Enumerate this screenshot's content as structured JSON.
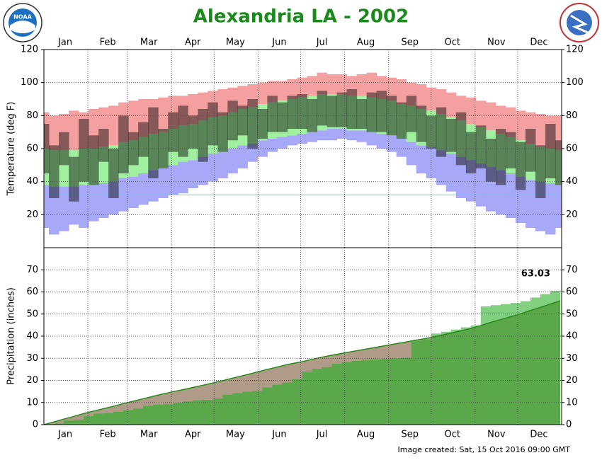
{
  "title": "Alexandria LA - 2002",
  "footer": "Image created: Sat, 15 Oct 2016 09:00 GMT",
  "chart_data": [
    {
      "type": "temperature_range",
      "y_label": "Temperature (deg F)",
      "xlim": [
        1,
        366
      ],
      "ylim": [
        0,
        120
      ],
      "yticks": [
        20,
        40,
        60,
        80,
        100,
        120
      ],
      "xticks": [
        {
          "value": 16,
          "label": "Jan"
        },
        {
          "value": 46,
          "label": "Feb"
        },
        {
          "value": 75,
          "label": "Mar"
        },
        {
          "value": 106,
          "label": "Apr"
        },
        {
          "value": 136,
          "label": "May"
        },
        {
          "value": 167,
          "label": "Jun"
        },
        {
          "value": 197,
          "label": "Jul"
        },
        {
          "value": 228,
          "label": "Aug"
        },
        {
          "value": 259,
          "label": "Sep"
        },
        {
          "value": 289,
          "label": "Oct"
        },
        {
          "value": 320,
          "label": "Nov"
        },
        {
          "value": 350,
          "label": "Dec"
        }
      ],
      "vgrid": [
        32,
        60,
        91,
        121,
        152,
        182,
        213,
        244,
        274,
        305,
        335
      ],
      "grid": true,
      "freezing_line": 32,
      "colors": {
        "record_high": "#f4a0a0",
        "normal": "#a0f0a0",
        "record_low": "#a8a8f8",
        "observed": "#000000",
        "freezing": "#40e0e0"
      },
      "x": [
        1,
        8,
        15,
        22,
        29,
        36,
        43,
        50,
        57,
        64,
        71,
        78,
        85,
        92,
        99,
        106,
        113,
        120,
        127,
        134,
        141,
        148,
        155,
        162,
        169,
        176,
        183,
        190,
        197,
        204,
        211,
        218,
        225,
        232,
        239,
        246,
        253,
        260,
        267,
        274,
        281,
        288,
        295,
        302,
        309,
        316,
        323,
        330,
        337,
        344,
        351,
        358,
        365
      ],
      "record_high": [
        82,
        80,
        81,
        83,
        82,
        84,
        85,
        86,
        88,
        89,
        90,
        90,
        91,
        92,
        92,
        93,
        94,
        95,
        96,
        97,
        98,
        99,
        100,
        101,
        101,
        102,
        103,
        104,
        106,
        105,
        105,
        104,
        105,
        106,
        104,
        103,
        102,
        100,
        99,
        97,
        96,
        94,
        92,
        91,
        89,
        88,
        86,
        85,
        83,
        82,
        81,
        80,
        80
      ],
      "normal_high": [
        60,
        59,
        59,
        59,
        60,
        60,
        61,
        62,
        64,
        65,
        67,
        69,
        70,
        72,
        74,
        75,
        77,
        79,
        80,
        82,
        84,
        85,
        87,
        88,
        89,
        90,
        91,
        92,
        93,
        93,
        93,
        92,
        92,
        91,
        90,
        89,
        87,
        86,
        84,
        83,
        81,
        79,
        77,
        75,
        73,
        71,
        69,
        67,
        65,
        63,
        61,
        60,
        59
      ],
      "normal_low": [
        38,
        37,
        37,
        37,
        38,
        38,
        39,
        40,
        42,
        43,
        45,
        47,
        48,
        50,
        52,
        53,
        55,
        57,
        58,
        60,
        62,
        63,
        65,
        66,
        67,
        68,
        69,
        70,
        71,
        72,
        72,
        71,
        71,
        70,
        69,
        68,
        66,
        64,
        62,
        61,
        59,
        57,
        55,
        53,
        51,
        49,
        47,
        45,
        43,
        41,
        40,
        39,
        38
      ],
      "record_low": [
        12,
        8,
        10,
        14,
        12,
        16,
        18,
        20,
        22,
        24,
        26,
        28,
        30,
        32,
        33,
        36,
        38,
        40,
        42,
        45,
        48,
        52,
        55,
        58,
        60,
        62,
        63,
        64,
        65,
        65,
        66,
        65,
        64,
        62,
        60,
        58,
        55,
        50,
        45,
        42,
        38,
        34,
        30,
        28,
        25,
        22,
        20,
        18,
        15,
        12,
        10,
        8,
        12
      ],
      "observed_high": [
        75,
        62,
        70,
        55,
        78,
        68,
        72,
        60,
        80,
        70,
        76,
        85,
        72,
        82,
        86,
        80,
        84,
        88,
        82,
        89,
        86,
        90,
        84,
        92,
        88,
        92,
        93,
        90,
        95,
        92,
        94,
        96,
        90,
        94,
        95,
        92,
        88,
        92,
        86,
        80,
        85,
        78,
        82,
        70,
        74,
        66,
        72,
        70,
        64,
        72,
        62,
        75,
        65
      ],
      "observed_low": [
        45,
        30,
        50,
        28,
        40,
        38,
        52,
        30,
        45,
        50,
        55,
        42,
        48,
        58,
        55,
        60,
        52,
        62,
        58,
        65,
        68,
        60,
        66,
        70,
        70,
        72,
        72,
        70,
        74,
        73,
        73,
        72,
        72,
        70,
        70,
        68,
        66,
        70,
        64,
        60,
        55,
        58,
        50,
        45,
        48,
        40,
        38,
        48,
        35,
        46,
        30,
        42,
        38
      ]
    },
    {
      "type": "cumulative_precip",
      "y_label": "Precipitation (inches)",
      "xlim": [
        1,
        366
      ],
      "ylim": [
        0,
        80
      ],
      "yticks": [
        0,
        10,
        20,
        30,
        40,
        50,
        60,
        70
      ],
      "grid": true,
      "colors": {
        "above": "#80d080",
        "below": "#b09a88",
        "common": "#5aa84a",
        "normal_line": "#2a8a1a"
      },
      "x": [
        1,
        8,
        15,
        22,
        29,
        36,
        43,
        50,
        57,
        64,
        71,
        78,
        85,
        92,
        99,
        106,
        113,
        120,
        127,
        134,
        141,
        148,
        155,
        162,
        169,
        176,
        183,
        190,
        197,
        204,
        211,
        218,
        225,
        232,
        239,
        246,
        253,
        260,
        267,
        274,
        281,
        288,
        295,
        302,
        309,
        316,
        323,
        330,
        337,
        344,
        351,
        358,
        365
      ],
      "observed": {
        "values": [
          0,
          0.5,
          1.8,
          2.2,
          3.8,
          5,
          5.2,
          5.8,
          6.5,
          7.2,
          8.5,
          9,
          9.2,
          9.8,
          10.5,
          11,
          11.2,
          11.8,
          13.5,
          14.2,
          14.8,
          15.2,
          16.8,
          18,
          19,
          20.5,
          24,
          25.2,
          26,
          27.5,
          28.2,
          28.8,
          29.3,
          29.5,
          29.8,
          30,
          30.2,
          37.8,
          38.5,
          41.2,
          42,
          43,
          44,
          44.8,
          53.5,
          54,
          54.5,
          55,
          55.8,
          57.5,
          59,
          60.5,
          63.03
        ]
      },
      "normal": {
        "values": [
          0,
          1.2,
          2.5,
          3.7,
          5,
          6.1,
          7.2,
          8.3,
          9.5,
          10.6,
          11.7,
          12.8,
          13.9,
          14.9,
          15.8,
          16.8,
          17.8,
          18.8,
          19.9,
          21,
          22.1,
          23.2,
          24.4,
          25.5,
          26.6,
          27.6,
          28.5,
          29.5,
          30.5,
          31.4,
          32.2,
          33,
          33.8,
          34.6,
          35.4,
          36.2,
          37,
          37.8,
          38.6,
          39.4,
          40.4,
          41.4,
          42.4,
          43.5,
          44.8,
          46.2,
          47.5,
          48.8,
          50.1,
          51.6,
          53,
          54.5,
          56
        ]
      }
    }
  ]
}
